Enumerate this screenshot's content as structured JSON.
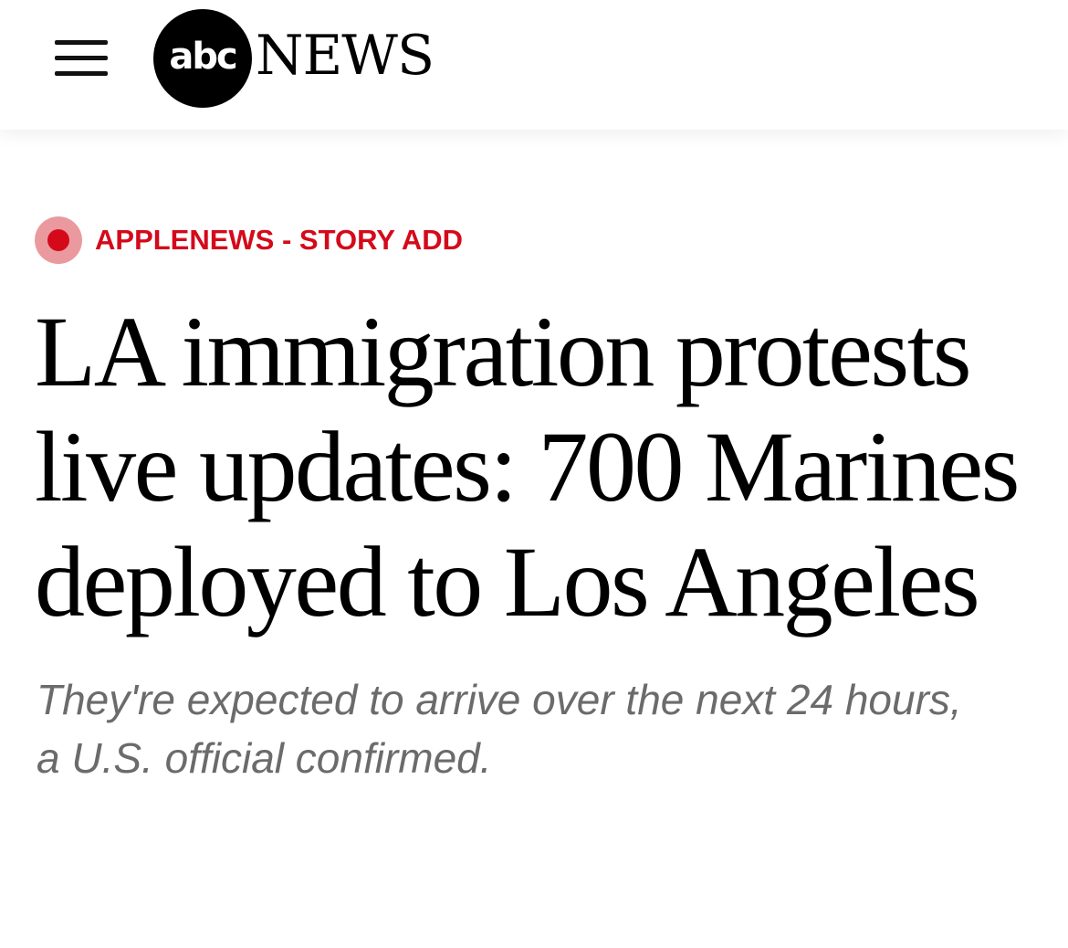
{
  "header": {
    "menu_icon": "hamburger-menu-icon",
    "logo": {
      "circle_text": "abc",
      "word": "NEWS"
    }
  },
  "article": {
    "tag": {
      "icon": "live-dot-icon",
      "label": "APPLENEWS - STORY ADD",
      "color": "#d40a1a"
    },
    "headline": "LA immigration protests live updates: 700 Marines deployed to Los Angeles",
    "subheadline": "They're expected to arrive over the next 24 hours, a U.S. official confirmed."
  }
}
